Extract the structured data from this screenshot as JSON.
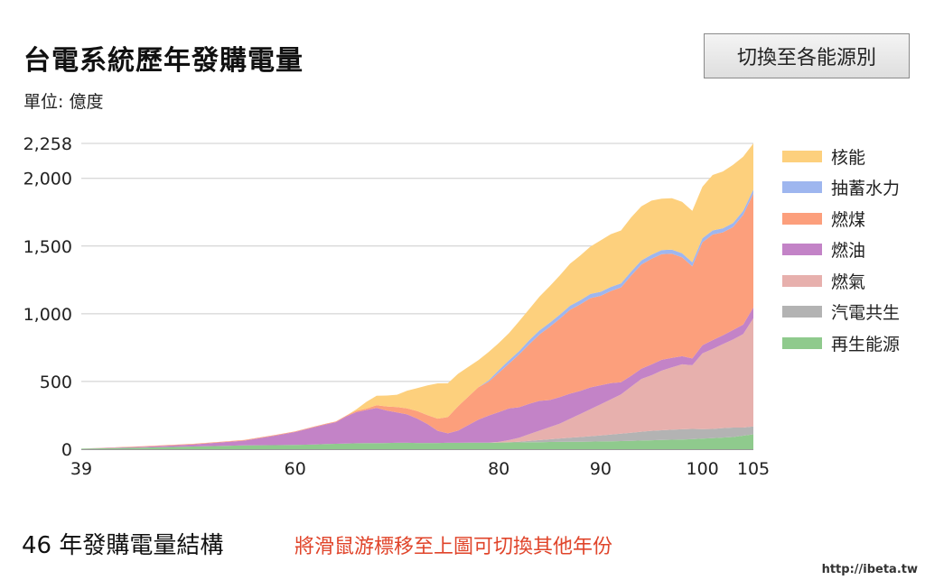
{
  "header": {
    "title": "台電系統歷年發購電量",
    "unit": "單位: 億度",
    "switch_button": "切換至各能源別"
  },
  "footer": {
    "year_label": "46 年發購電量結構",
    "hint": "將滑鼠游標移至上圖可切換其他年份"
  },
  "watermark": "http://ibeta.tw",
  "chart_data": {
    "type": "area",
    "stacked": true,
    "xlim": [
      39,
      105
    ],
    "ylim": [
      0,
      2258
    ],
    "y_ticks": [
      0,
      500,
      1000,
      1500,
      2000,
      2258
    ],
    "y_tick_labels": [
      "0",
      "500",
      "1,000",
      "1,500",
      "2,000",
      "2,258"
    ],
    "x_ticks": [
      39,
      60,
      80,
      90,
      100,
      105
    ],
    "grid": true,
    "legend_position": "right",
    "x": [
      39,
      45,
      50,
      55,
      58,
      60,
      62,
      63,
      64,
      65,
      66,
      67,
      68,
      69,
      70,
      71,
      72,
      73,
      74,
      75,
      76,
      77,
      78,
      79,
      80,
      81,
      82,
      83,
      84,
      85,
      86,
      87,
      88,
      89,
      90,
      91,
      92,
      93,
      94,
      95,
      96,
      97,
      98,
      99,
      100,
      101,
      102,
      103,
      104,
      105
    ],
    "series": [
      {
        "name": "再生能源",
        "color": "#8fca8d",
        "values": [
          4,
          12,
          20,
          28,
          30,
          32,
          35,
          38,
          40,
          42,
          44,
          45,
          45,
          46,
          47,
          47,
          46,
          46,
          46,
          47,
          47,
          48,
          48,
          48,
          49,
          50,
          50,
          51,
          52,
          53,
          54,
          55,
          55,
          56,
          57,
          58,
          60,
          62,
          64,
          66,
          68,
          70,
          72,
          74,
          78,
          82,
          86,
          90,
          100,
          110
        ]
      },
      {
        "name": "汽電共生",
        "color": "#b3b3b3",
        "values": [
          0,
          0,
          0,
          0,
          0,
          0,
          0,
          0,
          0,
          0,
          0,
          0,
          0,
          0,
          0,
          0,
          0,
          0,
          0,
          0,
          0,
          0,
          0,
          0,
          0,
          2,
          5,
          10,
          15,
          20,
          25,
          30,
          35,
          40,
          45,
          50,
          55,
          60,
          65,
          70,
          72,
          74,
          75,
          76,
          70,
          68,
          70,
          70,
          60,
          58
        ]
      },
      {
        "name": "燃氣",
        "color": "#e7b0ad",
        "values": [
          0,
          0,
          0,
          0,
          0,
          0,
          0,
          0,
          0,
          0,
          0,
          0,
          0,
          0,
          0,
          0,
          0,
          0,
          0,
          0,
          0,
          0,
          0,
          0,
          5,
          15,
          30,
          50,
          70,
          90,
          110,
          140,
          170,
          200,
          230,
          260,
          290,
          340,
          390,
          410,
          440,
          460,
          480,
          470,
          560,
          590,
          620,
          650,
          690,
          800
        ]
      },
      {
        "name": "燃油",
        "color": "#c383c7",
        "values": [
          0,
          5,
          15,
          35,
          70,
          95,
          130,
          145,
          160,
          200,
          230,
          245,
          260,
          240,
          225,
          210,
          180,
          140,
          90,
          70,
          90,
          130,
          170,
          200,
          220,
          235,
          225,
          225,
          220,
          200,
          195,
          185,
          170,
          160,
          140,
          120,
          90,
          80,
          75,
          80,
          80,
          70,
          60,
          50,
          60,
          65,
          65,
          70,
          70,
          80
        ]
      },
      {
        "name": "燃煤",
        "color": "#fc9f7c",
        "values": [
          0,
          5,
          5,
          5,
          5,
          5,
          5,
          5,
          5,
          5,
          10,
          10,
          20,
          30,
          40,
          45,
          55,
          65,
          90,
          120,
          180,
          210,
          240,
          250,
          290,
          330,
          390,
          440,
          490,
          540,
          580,
          620,
          640,
          660,
          660,
          680,
          700,
          740,
          770,
          780,
          780,
          770,
          730,
          680,
          760,
          780,
          760,
          760,
          810,
          840
        ]
      },
      {
        "name": "抽蓄水力",
        "color": "#9eb6ef",
        "values": [
          0,
          0,
          0,
          0,
          0,
          0,
          0,
          0,
          0,
          0,
          0,
          0,
          0,
          0,
          0,
          0,
          0,
          0,
          0,
          0,
          0,
          0,
          0,
          10,
          20,
          25,
          25,
          30,
          30,
          30,
          30,
          30,
          30,
          30,
          30,
          30,
          30,
          30,
          30,
          30,
          30,
          30,
          30,
          30,
          30,
          30,
          30,
          30,
          30,
          30
        ]
      },
      {
        "name": "核能",
        "color": "#fdd07d",
        "values": [
          0,
          0,
          0,
          0,
          0,
          0,
          0,
          0,
          0,
          0,
          10,
          50,
          70,
          80,
          90,
          130,
          170,
          220,
          260,
          250,
          240,
          220,
          200,
          210,
          200,
          200,
          220,
          230,
          250,
          270,
          290,
          310,
          330,
          350,
          380,
          390,
          390,
          400,
          400,
          400,
          380,
          380,
          380,
          380,
          380,
          410,
          420,
          430,
          400,
          340
        ]
      }
    ]
  }
}
